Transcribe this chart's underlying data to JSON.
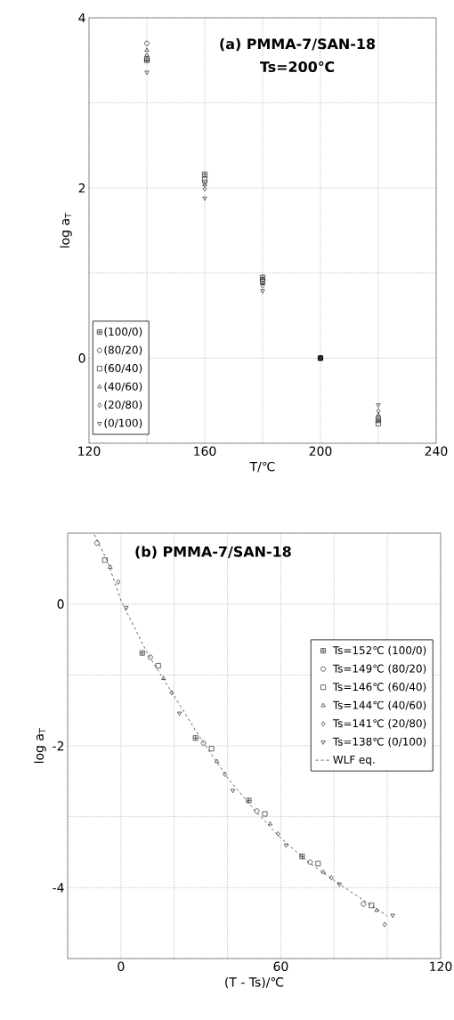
{
  "chart_data": [
    {
      "type": "scatter",
      "title": "(a) PMMA-7/SAN-18",
      "subtitle": "Ts=200℃",
      "xlabel": "T/℃",
      "ylabel": "log a$_{T}$",
      "x": [
        140,
        160,
        180,
        200,
        220
      ],
      "series": [
        {
          "name": "(100/0)",
          "color": "#000000",
          "values": [
            3.5,
            2.16,
            0.95,
            0,
            -0.73
          ]
        },
        {
          "name": "(80/20)",
          "color": "#000000",
          "marker": "circle",
          "values": [
            3.7,
            2.07,
            0.92,
            0,
            -0.7
          ]
        },
        {
          "name": "(60/40)",
          "color": "#000000",
          "marker": "square",
          "values": [
            3.52,
            2.1,
            0.9,
            0,
            -0.77
          ]
        },
        {
          "name": "(40/60)",
          "color": "#000000",
          "marker": "triangle",
          "values": [
            3.62,
            2.04,
            0.88,
            0,
            -0.67
          ]
        },
        {
          "name": "(20/80)",
          "color": "#000000",
          "marker": "diamond",
          "values": [
            3.56,
            1.99,
            0.85,
            0,
            -0.62
          ]
        },
        {
          "name": "(0/100)",
          "color": "#000000",
          "values": [
            3.36,
            1.88,
            0.79,
            0,
            -0.55
          ]
        }
      ],
      "xlim": [
        120,
        240
      ],
      "ylim": [
        -1,
        4
      ],
      "xticks": [
        120,
        {
          "value": 140,
          "label": null
        },
        160,
        {
          "value": 180,
          "label": null
        },
        200,
        {
          "value": 220,
          "label": null
        },
        240
      ],
      "yticks": [
        {
          "value": -1,
          "label": null
        },
        0,
        {
          "value": 1,
          "label": null
        },
        2,
        {
          "value": 3,
          "label": null
        },
        4
      ],
      "grid": true,
      "legend": "bottom left"
    },
    {
      "type": "scatter",
      "title": "(b) PMMA-7/SAN-18",
      "xlabel": "(T - Ts)/℃",
      "ylabel": "log a$_{T}$",
      "series": [
        {
          "name": "Ts=152℃ (100/0)",
          "color": "#000000",
          "x": [
            8,
            28,
            48,
            68
          ],
          "values": [
            -0.69,
            -1.89,
            -2.77,
            -3.56
          ]
        },
        {
          "name": "Ts=149℃ (80/20)",
          "color": "#000000",
          "marker": "circle",
          "x": [
            -9,
            11,
            31,
            51,
            71,
            91
          ],
          "values": [
            0.86,
            -0.75,
            -1.96,
            -2.92,
            -3.64,
            -4.23
          ]
        },
        {
          "name": "Ts=146℃ (60/40)",
          "color": "#000000",
          "marker": "square",
          "x": [
            -6,
            14,
            34,
            54,
            74,
            94
          ],
          "values": [
            0.62,
            -0.87,
            -2.04,
            -2.96,
            -3.66,
            -4.25
          ]
        },
        {
          "name": "Ts=144℃ (40/60)",
          "color": "#000000",
          "marker": "triangle",
          "x": [
            -4,
            16,
            36,
            56,
            76,
            96
          ],
          "values": [
            0.52,
            -1.05,
            -2.22,
            -3.1,
            -3.78,
            -4.32
          ]
        },
        {
          "name": "Ts=141℃ (20/80)",
          "color": "#000000",
          "marker": "diamond",
          "x": [
            -1,
            19,
            39,
            59,
            79,
            99
          ],
          "values": [
            0.31,
            -1.25,
            -2.4,
            -3.24,
            -3.86,
            -4.52
          ]
        },
        {
          "name": "Ts=138℃ (0/100)",
          "color": "#000000",
          "x": [
            2,
            22,
            42,
            62,
            82,
            102
          ],
          "values": [
            -0.05,
            -1.54,
            -2.63,
            -3.4,
            -3.95,
            -4.39
          ]
        },
        {
          "name": "WLF eq.",
          "type": "line",
          "color": "#000000",
          "marker": "none",
          "line_style": "dashed",
          "x": [
            -10,
            -5,
            0,
            10,
            20,
            30,
            40,
            50,
            60,
            70,
            80,
            90,
            100
          ],
          "values": [
            0.98,
            0.6,
            0.05,
            -0.7,
            -1.3,
            -1.9,
            -2.45,
            -2.9,
            -3.3,
            -3.63,
            -3.9,
            -4.15,
            -4.4
          ]
        }
      ],
      "xlim": [
        -20,
        120
      ],
      "ylim": [
        -5,
        1
      ],
      "xticks": [
        {
          "value": -20,
          "label": null
        },
        0,
        {
          "value": 20,
          "label": null
        },
        {
          "value": 40,
          "label": null
        },
        60,
        {
          "value": 80,
          "label": null
        },
        {
          "value": 100,
          "label": null
        },
        120
      ],
      "yticks": [
        {
          "value": -5,
          "label": null
        },
        -4,
        {
          "value": -3,
          "label": null
        },
        -2,
        {
          "value": -1,
          "label": null
        },
        0,
        {
          "value": 1,
          "label": null
        }
      ],
      "grid": true,
      "legend": "right"
    }
  ]
}
